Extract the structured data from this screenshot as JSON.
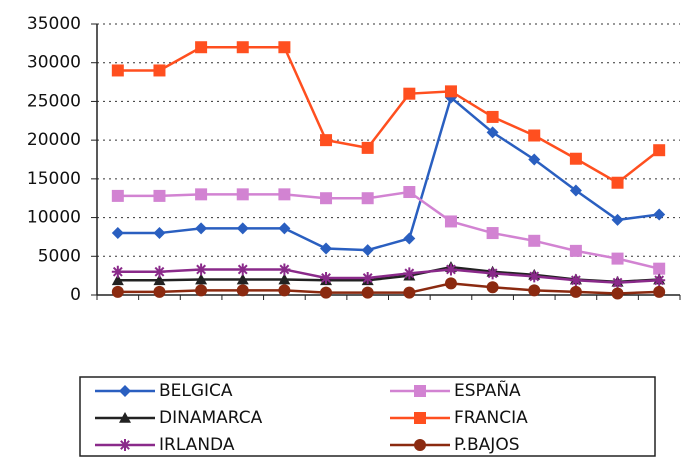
{
  "chart_data": {
    "type": "line",
    "categories": [
      null,
      null,
      null,
      null,
      null,
      null,
      null,
      null,
      null,
      null,
      null,
      null,
      null,
      null
    ],
    "series": [
      {
        "name": "BELGICA",
        "color": "#2a5fc0",
        "marker": "diamond",
        "values": [
          8000,
          8000,
          8600,
          8600,
          8600,
          6000,
          5800,
          7300,
          25500,
          21000,
          17500,
          13500,
          9700,
          10400
        ]
      },
      {
        "name": "ESPAÑA",
        "color": "#d283d2",
        "marker": "square",
        "values": [
          12800,
          12800,
          13000,
          13000,
          13000,
          12500,
          12500,
          13300,
          9500,
          8000,
          7000,
          5700,
          4700,
          3400
        ]
      },
      {
        "name": "DINAMARCA",
        "color": "#222222",
        "marker": "triangle",
        "values": [
          1900,
          1900,
          2000,
          2000,
          2000,
          1900,
          1900,
          2500,
          3600,
          3000,
          2600,
          2000,
          1700,
          2000
        ]
      },
      {
        "name": "FRANCIA",
        "color": "#ff4f1f",
        "marker": "square",
        "values": [
          29000,
          29000,
          32000,
          32000,
          32000,
          20000,
          19000,
          26000,
          26300,
          23000,
          20600,
          17600,
          14500,
          18700
        ]
      },
      {
        "name": "IRLANDA",
        "color": "#8a2a8a",
        "marker": "star",
        "values": [
          3000,
          3000,
          3300,
          3300,
          3300,
          2200,
          2200,
          2800,
          3300,
          2800,
          2400,
          1900,
          1600,
          1900
        ]
      },
      {
        "name": "P.BAJOS",
        "color": "#8b2a10",
        "marker": "circle",
        "values": [
          400,
          400,
          600,
          600,
          600,
          300,
          300,
          300,
          1500,
          1000,
          600,
          400,
          200,
          400
        ]
      }
    ],
    "ylim": [
      0,
      35000
    ],
    "yticks": [
      0,
      5000,
      10000,
      15000,
      20000,
      25000,
      30000,
      35000
    ],
    "grid": true,
    "legend": "bottom"
  }
}
